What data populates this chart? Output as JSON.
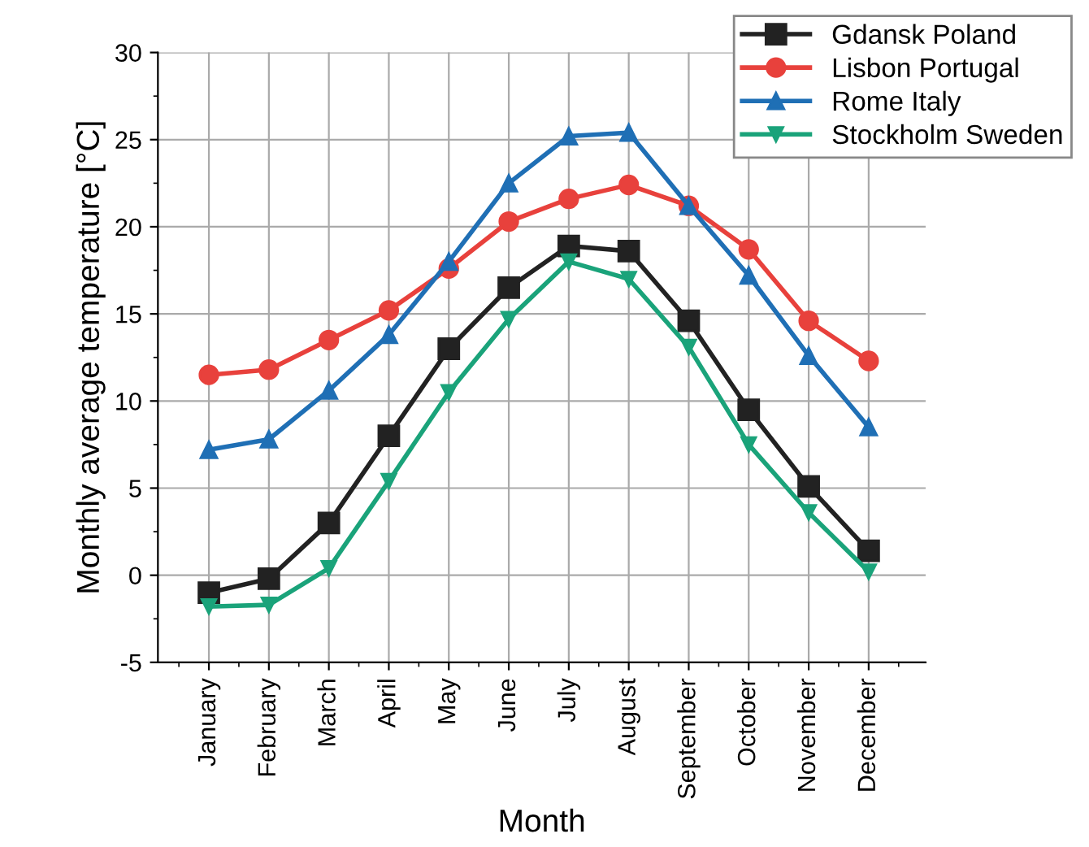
{
  "chart_data": {
    "type": "line",
    "xlabel": "Month",
    "ylabel": "Monthly average temperature [°C]",
    "categories": [
      "January",
      "February",
      "March",
      "April",
      "May",
      "June",
      "July",
      "August",
      "September",
      "October",
      "November",
      "December"
    ],
    "series": [
      {
        "name": "Gdansk Poland",
        "color": "#222222",
        "marker": "square",
        "values": [
          -1.0,
          -0.2,
          3.0,
          8.0,
          13.0,
          16.5,
          18.9,
          18.6,
          14.6,
          9.5,
          5.1,
          1.4
        ]
      },
      {
        "name": "Lisbon Portugal",
        "color": "#e8413c",
        "marker": "circle",
        "values": [
          11.5,
          11.8,
          13.5,
          15.2,
          17.6,
          20.3,
          21.6,
          22.4,
          21.2,
          18.7,
          14.6,
          12.3
        ]
      },
      {
        "name": "Rome Italy",
        "color": "#1f6fb5",
        "marker": "triangle",
        "values": [
          7.2,
          7.8,
          10.6,
          13.8,
          18.0,
          22.5,
          25.2,
          25.4,
          21.2,
          17.2,
          12.6,
          8.5
        ]
      },
      {
        "name": "Stockholm Sweden",
        "color": "#1aa37a",
        "marker": "triangle_down",
        "values": [
          -1.8,
          -1.7,
          0.4,
          5.4,
          10.5,
          14.7,
          18.0,
          17.0,
          13.1,
          7.5,
          3.6,
          0.2
        ]
      }
    ],
    "ylim": [
      -5,
      30
    ],
    "yticks": [
      -5,
      0,
      5,
      10,
      15,
      20,
      25,
      30
    ],
    "grid": true,
    "legend": "top right",
    "line_style": "solid"
  }
}
